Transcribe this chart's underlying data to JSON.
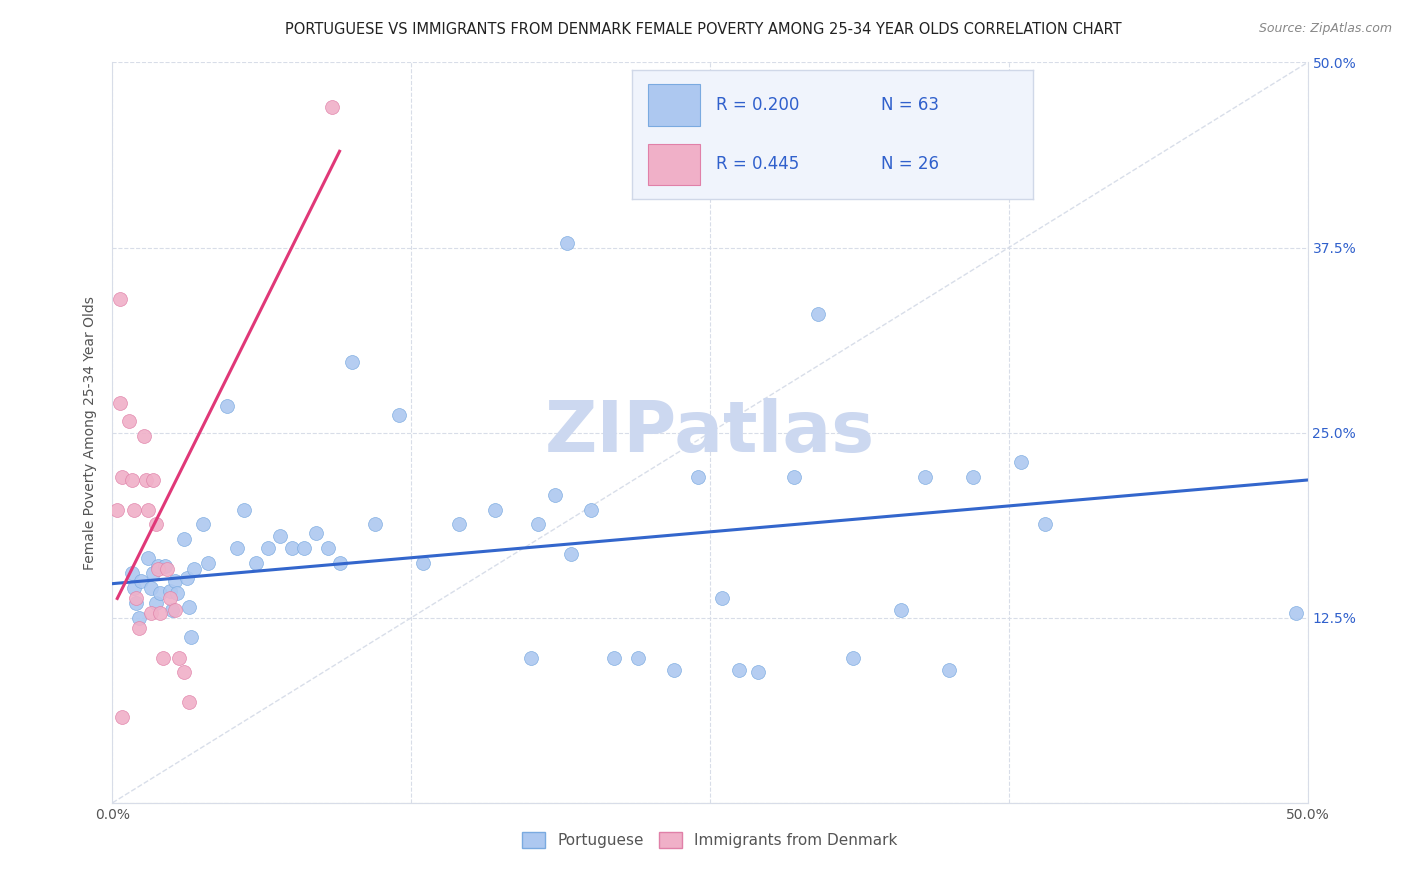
{
  "title": "PORTUGUESE VS IMMIGRANTS FROM DENMARK FEMALE POVERTY AMONG 25-34 YEAR OLDS CORRELATION CHART",
  "source": "Source: ZipAtlas.com",
  "ylabel": "Female Poverty Among 25-34 Year Olds",
  "xmin": 0.0,
  "xmax": 0.5,
  "ymin": 0.0,
  "ymax": 0.5,
  "xticks": [
    0.0,
    0.125,
    0.25,
    0.375,
    0.5
  ],
  "xtick_labels_bottom": [
    "0.0%",
    "",
    "",
    "",
    "50.0%"
  ],
  "yticks": [
    0.0,
    0.125,
    0.25,
    0.375,
    0.5
  ],
  "ytick_labels_right": [
    "",
    "12.5%",
    "25.0%",
    "37.5%",
    "50.0%"
  ],
  "legend_r1_label": "R = 0.200",
  "legend_n1_label": "N = 63",
  "legend_r2_label": "R = 0.445",
  "legend_n2_label": "N = 26",
  "blue_color": "#adc8f0",
  "pink_color": "#f0b0c8",
  "blue_line_color": "#3366cc",
  "pink_line_color": "#e03878",
  "blue_edge_color": "#7aaae0",
  "pink_edge_color": "#e080a8",
  "watermark": "ZIPatlas",
  "blue_scatter_x": [
    0.008,
    0.009,
    0.01,
    0.011,
    0.012,
    0.015,
    0.016,
    0.017,
    0.018,
    0.019,
    0.02,
    0.022,
    0.024,
    0.025,
    0.026,
    0.027,
    0.03,
    0.031,
    0.032,
    0.033,
    0.034,
    0.038,
    0.04,
    0.048,
    0.052,
    0.055,
    0.06,
    0.065,
    0.07,
    0.075,
    0.08,
    0.085,
    0.09,
    0.095,
    0.1,
    0.11,
    0.12,
    0.13,
    0.145,
    0.16,
    0.175,
    0.178,
    0.185,
    0.19,
    0.192,
    0.2,
    0.21,
    0.22,
    0.235,
    0.245,
    0.255,
    0.262,
    0.27,
    0.285,
    0.295,
    0.31,
    0.33,
    0.34,
    0.35,
    0.36,
    0.38,
    0.39,
    0.495
  ],
  "blue_scatter_y": [
    0.155,
    0.145,
    0.135,
    0.125,
    0.15,
    0.165,
    0.145,
    0.155,
    0.135,
    0.16,
    0.142,
    0.16,
    0.143,
    0.13,
    0.15,
    0.142,
    0.178,
    0.152,
    0.132,
    0.112,
    0.158,
    0.188,
    0.162,
    0.268,
    0.172,
    0.198,
    0.162,
    0.172,
    0.18,
    0.172,
    0.172,
    0.182,
    0.172,
    0.162,
    0.298,
    0.188,
    0.262,
    0.162,
    0.188,
    0.198,
    0.098,
    0.188,
    0.208,
    0.378,
    0.168,
    0.198,
    0.098,
    0.098,
    0.09,
    0.22,
    0.138,
    0.09,
    0.088,
    0.22,
    0.33,
    0.098,
    0.13,
    0.22,
    0.09,
    0.22,
    0.23,
    0.188,
    0.128
  ],
  "pink_scatter_x": [
    0.003,
    0.003,
    0.004,
    0.004,
    0.007,
    0.008,
    0.009,
    0.01,
    0.011,
    0.013,
    0.014,
    0.015,
    0.016,
    0.017,
    0.018,
    0.019,
    0.02,
    0.021,
    0.023,
    0.024,
    0.026,
    0.028,
    0.03,
    0.032,
    0.092,
    0.002
  ],
  "pink_scatter_y": [
    0.34,
    0.27,
    0.22,
    0.058,
    0.258,
    0.218,
    0.198,
    0.138,
    0.118,
    0.248,
    0.218,
    0.198,
    0.128,
    0.218,
    0.188,
    0.158,
    0.128,
    0.098,
    0.158,
    0.138,
    0.13,
    0.098,
    0.088,
    0.068,
    0.47,
    0.198
  ],
  "blue_trend_x": [
    0.0,
    0.5
  ],
  "blue_trend_y": [
    0.148,
    0.218
  ],
  "pink_trend_x": [
    0.002,
    0.095
  ],
  "pink_trend_y": [
    0.138,
    0.44
  ],
  "diag_line_x": [
    0.0,
    0.5
  ],
  "diag_line_y": [
    0.0,
    0.5
  ],
  "grid_color": "#d8dde8",
  "grid_linestyle": "--",
  "background_color": "#ffffff",
  "title_fontsize": 10.5,
  "label_fontsize": 10,
  "tick_fontsize": 10,
  "scatter_size": 100,
  "trend_linewidth": 2.2,
  "watermark_fontsize": 52,
  "watermark_color": "#ccd8f0",
  "source_fontsize": 9,
  "legend_text_color": "#3060cc",
  "legend_box_color": "#f0f4fc",
  "legend_border_color": "#d0d8e8"
}
